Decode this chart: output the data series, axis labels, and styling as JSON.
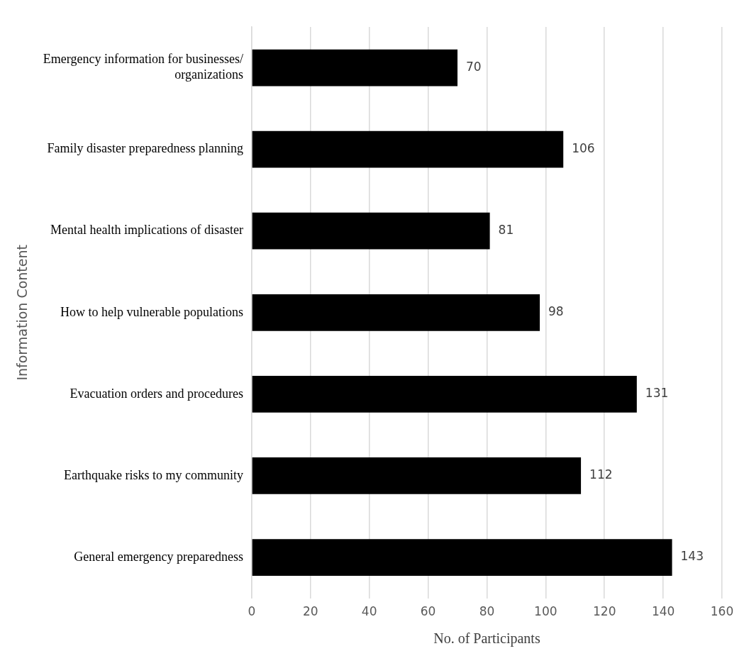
{
  "chart_data": {
    "type": "bar",
    "orientation": "horizontal",
    "xlabel": "No. of Participants",
    "ylabel": "Information Content",
    "categories": [
      "Emergency information for businesses/ organizations",
      "Family disaster preparedness planning",
      "Mental health implications of disaster",
      "How to help vulnerable populations",
      "Evacuation orders and procedures",
      "Earthquake risks to my community",
      "General emergency preparedness"
    ],
    "values": [
      70,
      106,
      81,
      98,
      131,
      112,
      143
    ],
    "color": "#000000",
    "xlim": [
      0,
      160
    ],
    "xticks": [
      0,
      20,
      40,
      60,
      80,
      100,
      120,
      140,
      160
    ],
    "grid": "x",
    "data_labels": true,
    "legend": false
  }
}
